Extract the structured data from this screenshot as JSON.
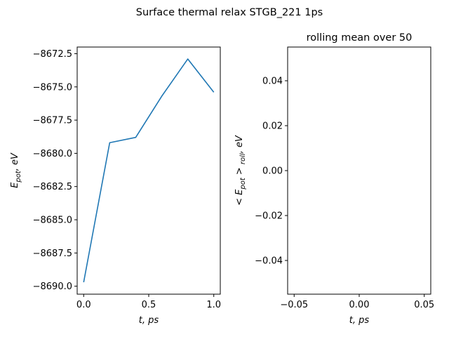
{
  "figure": {
    "suptitle": "Surface thermal relax STGB_221 1ps"
  },
  "chart_data": [
    {
      "type": "line",
      "title": "",
      "xlabel": "t, ps",
      "ylabel_main": "E",
      "ylabel_sub": "pot",
      "ylabel_rest": ", eV",
      "x": [
        0.0,
        0.2,
        0.4,
        0.6,
        0.8,
        1.0
      ],
      "series": [
        {
          "name": "",
          "color": "#1f77b4",
          "values": [
            -8689.7,
            -8679.2,
            -8678.8,
            -8675.7,
            -8672.9,
            -8675.4
          ]
        }
      ],
      "xlim": [
        -0.05,
        1.05
      ],
      "ylim": [
        -8690.6,
        -8672.0
      ],
      "xticks": [
        0.0,
        0.5,
        1.0
      ],
      "xtick_labels": [
        "0.0",
        "0.5",
        "1.0"
      ],
      "yticks": [
        -8690.0,
        -8687.5,
        -8685.0,
        -8682.5,
        -8680.0,
        -8677.5,
        -8675.0,
        -8672.5
      ],
      "ytick_labels": [
        "−8690.0",
        "−8687.5",
        "−8685.0",
        "−8682.5",
        "−8680.0",
        "−8677.5",
        "−8675.0",
        "−8672.5"
      ],
      "grid": false
    },
    {
      "type": "line",
      "title": "rolling mean over 50",
      "xlabel": "t, ps",
      "ylabel_main": "< E",
      "ylabel_sub": "pot",
      "ylabel_mid": " > ",
      "ylabel_sub2": "roll",
      "ylabel_rest": ", eV",
      "x": [],
      "series": [],
      "xlim": [
        -0.055,
        0.055
      ],
      "ylim": [
        -0.055,
        0.055
      ],
      "xticks": [
        -0.05,
        0.0,
        0.05
      ],
      "xtick_labels": [
        "−0.05",
        "0.00",
        "0.05"
      ],
      "yticks": [
        -0.04,
        -0.02,
        0.0,
        0.02,
        0.04
      ],
      "ytick_labels": [
        "−0.04",
        "−0.02",
        "0.00",
        "0.02",
        "0.04"
      ],
      "grid": false
    }
  ]
}
